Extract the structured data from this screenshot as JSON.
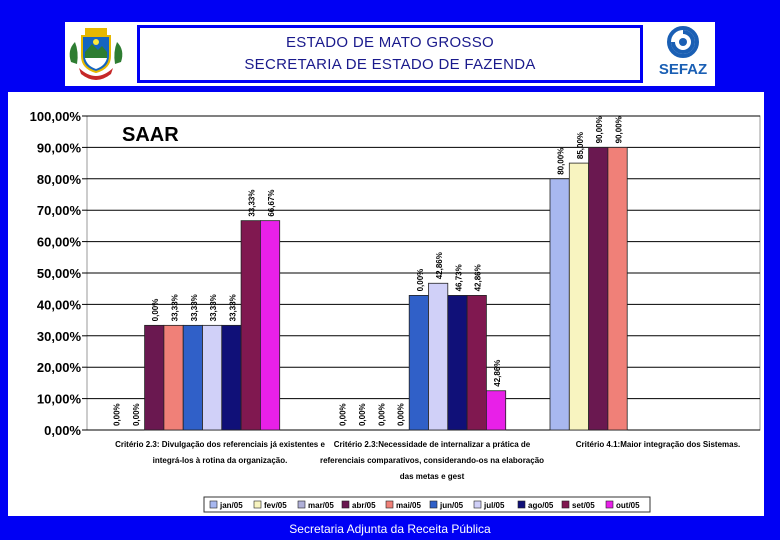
{
  "header": {
    "line1": "ESTADO DE MATO GROSSO",
    "line2": "SECRETARIA DE ESTADO DE FAZENDA",
    "logo_text": "SEFAZ"
  },
  "footer": {
    "text": "Secretaria Adjunta da Receita Pública"
  },
  "colors": {
    "background": "#0000f4",
    "header_text": "#1a1a8c"
  },
  "chart_data": {
    "type": "bar",
    "title": "SAAR",
    "ylim": [
      0,
      100
    ],
    "yticks": [
      "0,00%",
      "10,00%",
      "20,00%",
      "30,00%",
      "40,00%",
      "50,00%",
      "60,00%",
      "70,00%",
      "80,00%",
      "90,00%",
      "100,00%"
    ],
    "grid": true,
    "legend_placement": "bottom",
    "categories": [
      "Critério 2.3: Divulgação dos referenciais já existentes e integrá-los à rotina da organização.",
      "Critério 2.3:Necessidade de internalizar a prática de referenciais comparativos, considerando-os na elaboração das metas e gest",
      "Critério 4.1:Maior integração dos Sistemas."
    ],
    "category_lines": [
      [
        "Critério 2.3: Divulgação dos referenciais já existentes e",
        "integrá-los à rotina da organização."
      ],
      [
        "Critério 2.3:Necessidade de internalizar a prática de",
        "referenciais comparativos, considerando-os na elaboração",
        "das metas e gest"
      ],
      [
        "Critério 4.1:Maior integração dos Sistemas."
      ]
    ],
    "series": [
      {
        "name": "jan/05",
        "color": "#a8b8f0",
        "values": [
          0,
          0,
          80
        ]
      },
      {
        "name": "fev/05",
        "color": "#f8f4c0",
        "values": [
          0,
          0,
          85
        ]
      },
      {
        "name": "mar/05",
        "color": "#b0b0d8",
        "values": [
          null,
          0,
          null
        ]
      },
      {
        "name": "abr/05",
        "color": "#6a1850",
        "values": [
          33.33,
          0,
          90
        ]
      },
      {
        "name": "mai/05",
        "color": "#f08078",
        "values": [
          33.33,
          null,
          90
        ]
      },
      {
        "name": "jun/05",
        "color": "#3060c8",
        "values": [
          33.33,
          42.86,
          null
        ]
      },
      {
        "name": "jul/05",
        "color": "#d0d0f8",
        "values": [
          33.33,
          46.73,
          null
        ]
      },
      {
        "name": "ago/05",
        "color": "#101078",
        "values": [
          33.33,
          42.86,
          null
        ]
      },
      {
        "name": "set/05",
        "color": "#801850",
        "values": [
          66.67,
          42.86,
          null
        ]
      },
      {
        "name": "out/05",
        "color": "#e820e8",
        "values": [
          66.67,
          12.5,
          null
        ]
      }
    ],
    "value_labels": [
      [
        "0,00%",
        "0,00%",
        "0,00%",
        "33,33%",
        "33,33%",
        "33,33%",
        "33,33%",
        "33,33%",
        "66,67%",
        "66,67%"
      ],
      [
        "0,00%",
        "0,00%",
        "0,00%",
        "0,00%",
        "0,00%",
        "42,86%",
        "46,73%",
        "42,86%",
        "42,86%",
        "12,50%"
      ],
      [
        "80,00%",
        "85,00%",
        "90,00%",
        "90,00%"
      ]
    ]
  }
}
